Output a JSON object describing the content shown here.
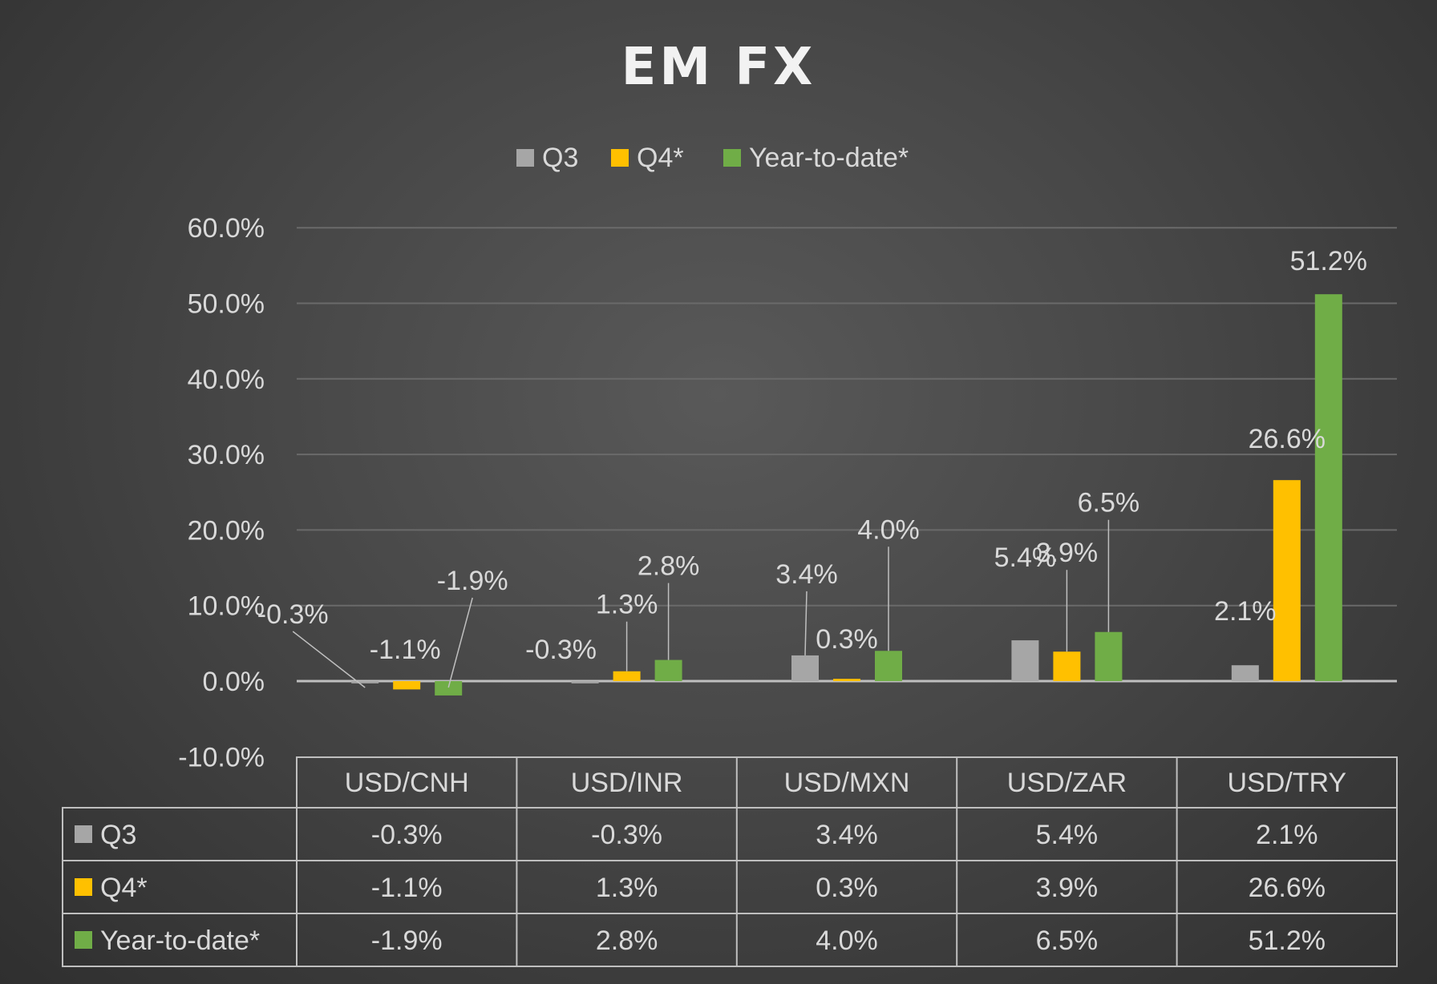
{
  "colors": {
    "Q3": "#a6a6a6",
    "Q4*": "#ffc000",
    "Year-to-date*": "#70ad47"
  },
  "chart_data": {
    "type": "bar",
    "title": "EM FX",
    "categories": [
      "USD/CNH",
      "USD/INR",
      "USD/MXN",
      "USD/ZAR",
      "USD/TRY"
    ],
    "series": [
      {
        "name": "Q3",
        "values": [
          -0.3,
          -0.3,
          3.4,
          5.4,
          2.1
        ],
        "labels": [
          "-0.3%",
          "-0.3%",
          "3.4%",
          "5.4%",
          "2.1%"
        ]
      },
      {
        "name": "Q4*",
        "values": [
          -1.1,
          1.3,
          0.3,
          3.9,
          26.6
        ],
        "labels": [
          "-1.1%",
          "1.3%",
          "0.3%",
          "3.9%",
          "26.6%"
        ]
      },
      {
        "name": "Year-to-date*",
        "values": [
          -1.9,
          2.8,
          4.0,
          6.5,
          51.2
        ],
        "labels": [
          "-1.9%",
          "2.8%",
          "4.0%",
          "6.5%",
          "51.2%"
        ]
      }
    ],
    "ylim": [
      -10,
      60
    ],
    "yticks": [
      60,
      50,
      40,
      30,
      20,
      10,
      0,
      -10
    ],
    "ytick_labels": [
      "60.0%",
      "50.0%",
      "40.0%",
      "30.0%",
      "20.0%",
      "10.0%",
      "0.0%",
      "-10.0%"
    ],
    "grid": true,
    "legend": "top",
    "data_table": true
  }
}
